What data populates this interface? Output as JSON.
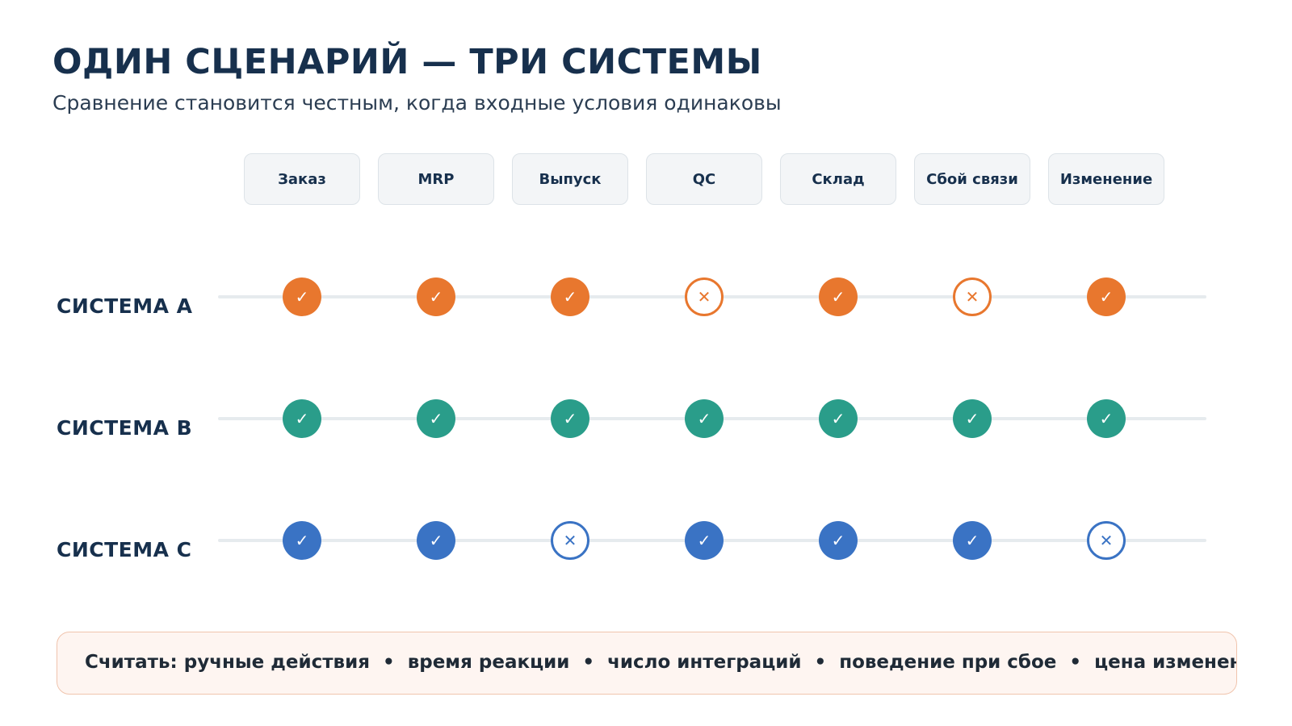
{
  "title": "ОДИН СЦЕНАРИЙ — ТРИ СИСТЕМЫ",
  "subtitle": "Сравнение становится честным, когда входные условия одинаковы",
  "stages": [
    "Заказ",
    "MRP",
    "Выпуск",
    "QC",
    "Склад",
    "Сбой связи",
    "Изменение"
  ],
  "systems": [
    {
      "label": "СИСТЕМА A",
      "color": "#e8772e",
      "results": [
        "ok",
        "ok",
        "ok",
        "fail",
        "ok",
        "fail",
        "ok"
      ]
    },
    {
      "label": "СИСТЕМА B",
      "color": "#2a9d8a",
      "results": [
        "ok",
        "ok",
        "ok",
        "ok",
        "ok",
        "ok",
        "ok"
      ]
    },
    {
      "label": "СИСТЕМА C",
      "color": "#3a73c4",
      "results": [
        "ok",
        "ok",
        "fail",
        "ok",
        "ok",
        "ok",
        "fail"
      ]
    }
  ],
  "symbols": {
    "ok": "✓",
    "fail": "✕"
  },
  "icons": {
    "ok": "check-icon",
    "fail": "cross-icon"
  },
  "footer": {
    "prefix": "Считать:",
    "items": [
      "ручные действия",
      "время реакции",
      "число интеграций",
      "поведение при сбое",
      "цена изменения"
    ],
    "separator": "•"
  }
}
